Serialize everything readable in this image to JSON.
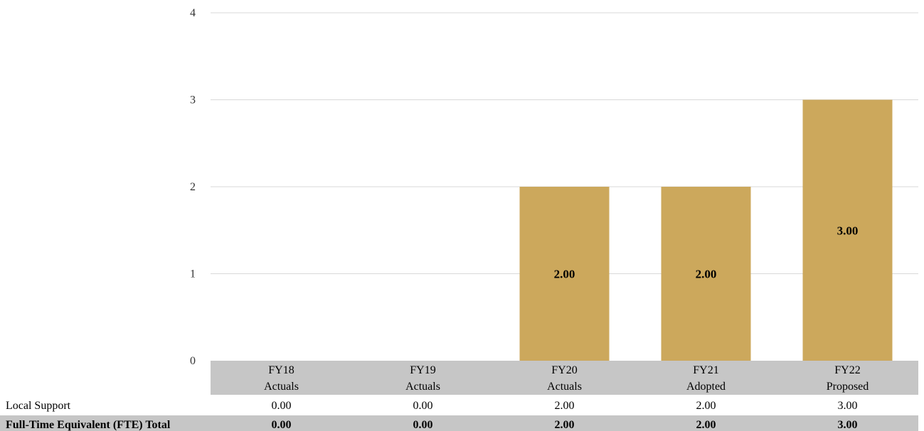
{
  "chart_data": {
    "type": "bar",
    "categories": [
      {
        "line1": "FY18",
        "line2": "Actuals"
      },
      {
        "line1": "FY19",
        "line2": "Actuals"
      },
      {
        "line1": "FY20",
        "line2": "Actuals"
      },
      {
        "line1": "FY21",
        "line2": "Adopted"
      },
      {
        "line1": "FY22",
        "line2": "Proposed"
      }
    ],
    "series": [
      {
        "name": "Local Support",
        "values": [
          0,
          0,
          2,
          2,
          3
        ],
        "color": "#cca85c"
      }
    ],
    "data_labels": [
      "",
      "",
      "2.00",
      "2.00",
      "3.00"
    ],
    "y_ticks": [
      "0",
      "1",
      "2",
      "3",
      "4"
    ],
    "ylim": [
      0,
      4
    ],
    "grid": true,
    "title": "",
    "xlabel": "",
    "ylabel": ""
  },
  "table": {
    "rows": [
      {
        "label": "Local Support",
        "values": [
          "0.00",
          "0.00",
          "2.00",
          "2.00",
          "3.00"
        ]
      }
    ],
    "total": {
      "label": "Full-Time Equivalent (FTE) Total",
      "values": [
        "0.00",
        "0.00",
        "2.00",
        "2.00",
        "3.00"
      ]
    }
  }
}
